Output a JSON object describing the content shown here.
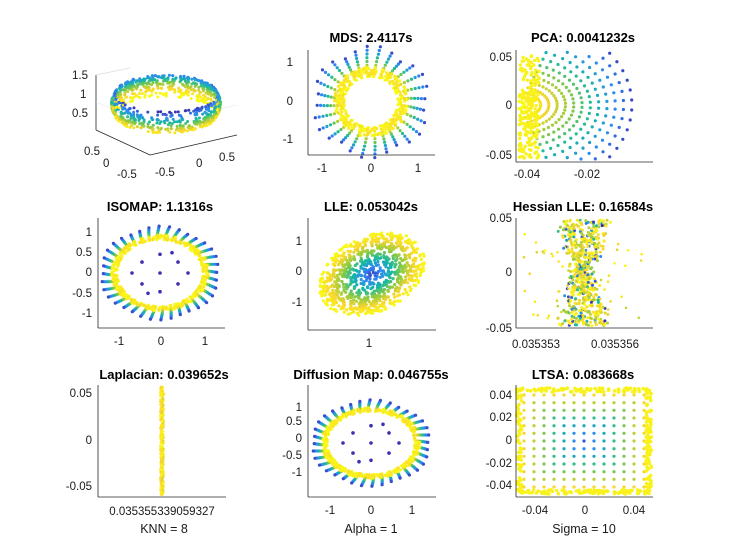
{
  "chart_data": [
    {
      "id": "swiss-roll-3d",
      "type": "scatter",
      "title": "",
      "projection": "3d",
      "xticks": [
        "0.5",
        "0",
        "-0.5"
      ],
      "yticks": [
        "-0.5",
        "0",
        "0.5"
      ],
      "zticks": [
        "1.5",
        "1",
        "0.5"
      ],
      "colormap": [
        "#3e26a8",
        "#2e87f7",
        "#14b8a4",
        "#8fcb3e",
        "#f9d62d",
        "#f9fb15"
      ]
    },
    {
      "id": "mds",
      "type": "scatter",
      "title": "MDS: 2.4117s",
      "xlim": [
        -1.6,
        1.6
      ],
      "ylim": [
        -1.45,
        1.45
      ],
      "xticks": [
        "-1",
        "0",
        "1"
      ],
      "yticks": [
        "1",
        "0",
        "-1"
      ],
      "pattern": "ring",
      "inner_radius": 0.75,
      "outer_radius": 1.4,
      "spikes": 26
    },
    {
      "id": "pca",
      "type": "scatter",
      "title": "PCA: 0.0041232s",
      "xlim": [
        -0.046,
        0.0
      ],
      "ylim": [
        -0.058,
        0.058
      ],
      "xticks": [
        "-0.04",
        "-0.02"
      ],
      "yticks": [
        "0.05",
        "0",
        "-0.05"
      ],
      "pattern": "fan"
    },
    {
      "id": "isomap",
      "type": "scatter",
      "title": "ISOMAP: 1.1316s",
      "xlim": [
        -1.75,
        1.75
      ],
      "ylim": [
        -1.45,
        1.45
      ],
      "xticks": [
        "-1",
        "0",
        "1"
      ],
      "yticks": [
        "1",
        "0.5",
        "0",
        "-0.5",
        "-1"
      ],
      "pattern": "ring-with-center",
      "inner_radius": 1.05,
      "outer_radius": 1.35,
      "spikes": 36
    },
    {
      "id": "lle",
      "type": "scatter",
      "title": "LLE: 0.053042s",
      "xlim": [
        -0.2,
        2.2
      ],
      "ylim": [
        -1.9,
        1.9
      ],
      "xticks": [
        "1"
      ],
      "yticks": [
        "1",
        "0",
        "-1"
      ],
      "pattern": "ellipse"
    },
    {
      "id": "hessian-lle",
      "type": "scatter",
      "title": "Hessian LLE: 0.16584s",
      "xlim": [
        0.035352,
        0.035357
      ],
      "ylim": [
        -0.05,
        0.05
      ],
      "xticks": [
        "0.035353",
        "0.035356"
      ],
      "yticks": [
        "0.05",
        "0",
        "-0.05"
      ],
      "pattern": "scatter-band"
    },
    {
      "id": "laplacian",
      "type": "scatter",
      "title": "Laplacian: 0.039652s",
      "xlim": [
        0,
        1
      ],
      "ylim": [
        -0.058,
        0.058
      ],
      "xticks": [
        "0.035355339059327"
      ],
      "yticks": [
        "0.05",
        "0",
        "-0.05"
      ],
      "pattern": "vertical-line",
      "xlabel": "KNN = 8"
    },
    {
      "id": "diffusion-map",
      "type": "scatter",
      "title": "Diffusion Map: 0.046755s",
      "xlim": [
        -1.6,
        1.6
      ],
      "ylim": [
        -1.6,
        1.6
      ],
      "xticks": [
        "-1",
        "0",
        "1"
      ],
      "yticks": [
        "1",
        "0.5",
        "0",
        "-0.5",
        "-1"
      ],
      "pattern": "ring-with-center",
      "inner_radius": 1.0,
      "outer_radius": 1.3,
      "spikes": 36,
      "xlabel": "Alpha = 1"
    },
    {
      "id": "ltsa",
      "type": "scatter",
      "title": "LTSA: 0.083668s",
      "xlim": [
        -0.055,
        0.055
      ],
      "ylim": [
        -0.048,
        0.048
      ],
      "xticks": [
        "-0.04",
        "0",
        "0.04"
      ],
      "yticks": [
        "0.04",
        "0.02",
        "0",
        "-0.02",
        "-0.04"
      ],
      "pattern": "square-grid",
      "xlabel": "Sigma = 10"
    }
  ]
}
